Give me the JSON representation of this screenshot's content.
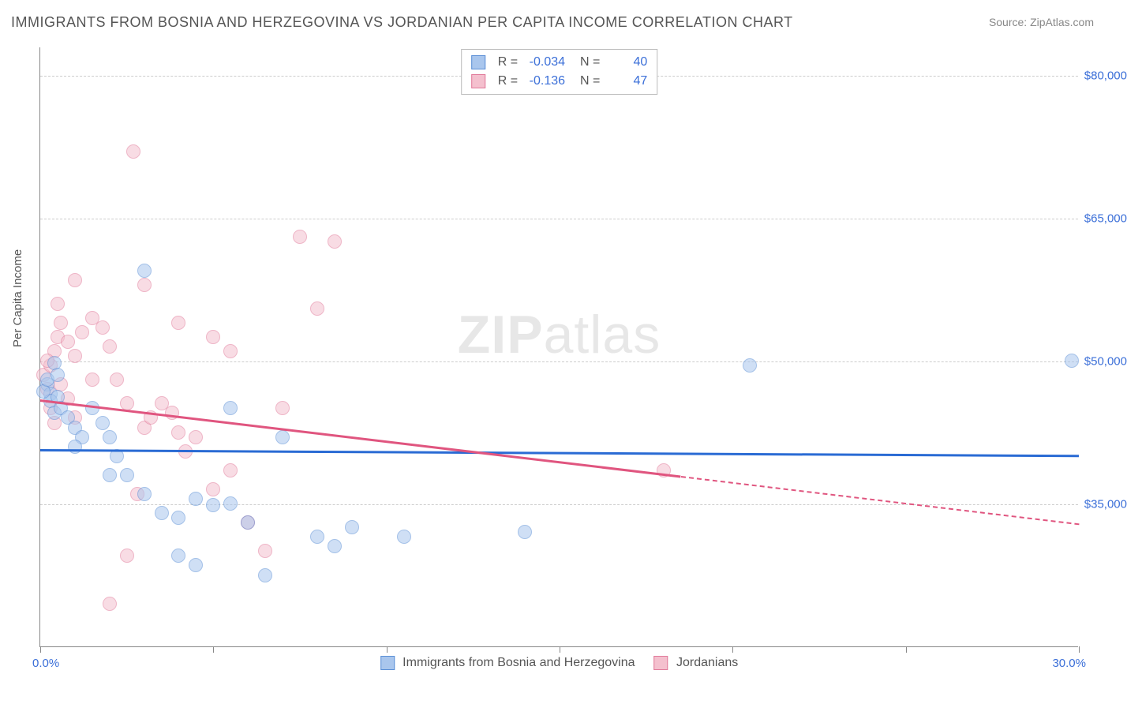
{
  "title": "IMMIGRANTS FROM BOSNIA AND HERZEGOVINA VS JORDANIAN PER CAPITA INCOME CORRELATION CHART",
  "source": "Source: ZipAtlas.com",
  "ylabel": "Per Capita Income",
  "watermark_bold": "ZIP",
  "watermark_light": "atlas",
  "chart": {
    "type": "scatter",
    "background_color": "#ffffff",
    "grid_color": "#cccccc",
    "axis_color": "#888888",
    "xlim": [
      0.0,
      30.0
    ],
    "ylim": [
      20000,
      83000
    ],
    "xlabel_min": "0.0%",
    "xlabel_max": "30.0%",
    "ytick_values": [
      35000,
      50000,
      65000,
      80000
    ],
    "ytick_labels": [
      "$35,000",
      "$50,000",
      "$65,000",
      "$80,000"
    ],
    "xtick_positions": [
      0,
      5,
      10,
      15,
      20,
      25,
      30
    ],
    "point_radius": 9,
    "series": [
      {
        "name": "Immigrants from Bosnia and Herzegovina",
        "fill": "#a9c6ed",
        "stroke": "#5b8fd6",
        "fill_opacity": 0.55,
        "R": "-0.034",
        "N": "40",
        "trend": {
          "x1": 0,
          "y1": 40800,
          "x2": 30,
          "y2": 40200,
          "color": "#2a6bd4",
          "dash_from_x": 30
        },
        "points": [
          [
            0.2,
            47500
          ],
          [
            0.3,
            46500
          ],
          [
            0.3,
            45800
          ],
          [
            0.4,
            44500
          ],
          [
            0.1,
            46800
          ],
          [
            0.5,
            46200
          ],
          [
            0.6,
            45000
          ],
          [
            0.8,
            44000
          ],
          [
            1.0,
            43000
          ],
          [
            1.2,
            42000
          ],
          [
            0.4,
            49800
          ],
          [
            0.2,
            48000
          ],
          [
            1.5,
            45000
          ],
          [
            1.8,
            43500
          ],
          [
            2.0,
            42000
          ],
          [
            2.2,
            40000
          ],
          [
            2.5,
            38000
          ],
          [
            3.0,
            36000
          ],
          [
            3.5,
            34000
          ],
          [
            4.0,
            33500
          ],
          [
            4.5,
            35500
          ],
          [
            5.0,
            34800
          ],
          [
            5.5,
            35000
          ],
          [
            6.0,
            33000
          ],
          [
            6.5,
            27500
          ],
          [
            7.0,
            42000
          ],
          [
            8.0,
            31500
          ],
          [
            8.5,
            30500
          ],
          [
            9.0,
            32500
          ],
          [
            10.5,
            31500
          ],
          [
            3.0,
            59500
          ],
          [
            4.0,
            29500
          ],
          [
            4.5,
            28500
          ],
          [
            5.5,
            45000
          ],
          [
            2.0,
            38000
          ],
          [
            14.0,
            32000
          ],
          [
            20.5,
            49500
          ],
          [
            29.8,
            50000
          ],
          [
            0.5,
            48500
          ],
          [
            1.0,
            41000
          ]
        ]
      },
      {
        "name": "Jordanians",
        "fill": "#f4c0ce",
        "stroke": "#e17a9a",
        "fill_opacity": 0.55,
        "R": "-0.136",
        "N": "47",
        "trend": {
          "x1": 0,
          "y1": 46000,
          "x2": 18.5,
          "y2": 38000,
          "color": "#e0557f",
          "dash_from_x": 18.5,
          "dash_to_x": 30,
          "dash_to_y": 33000
        },
        "points": [
          [
            0.1,
            48500
          ],
          [
            0.2,
            47000
          ],
          [
            0.3,
            49500
          ],
          [
            0.4,
            51000
          ],
          [
            0.5,
            52500
          ],
          [
            0.6,
            54000
          ],
          [
            0.8,
            52000
          ],
          [
            1.0,
            50500
          ],
          [
            1.2,
            53000
          ],
          [
            1.5,
            54500
          ],
          [
            1.8,
            53500
          ],
          [
            2.0,
            51500
          ],
          [
            2.2,
            48000
          ],
          [
            1.0,
            58500
          ],
          [
            0.5,
            56000
          ],
          [
            2.5,
            45500
          ],
          [
            3.0,
            43000
          ],
          [
            3.2,
            44000
          ],
          [
            3.5,
            45500
          ],
          [
            3.8,
            44500
          ],
          [
            4.0,
            42500
          ],
          [
            4.2,
            40500
          ],
          [
            4.5,
            42000
          ],
          [
            5.0,
            36500
          ],
          [
            5.5,
            38500
          ],
          [
            6.0,
            33000
          ],
          [
            2.8,
            36000
          ],
          [
            3.0,
            58000
          ],
          [
            2.0,
            24500
          ],
          [
            2.7,
            72000
          ],
          [
            7.5,
            63000
          ],
          [
            8.5,
            62500
          ],
          [
            7.0,
            45000
          ],
          [
            8.0,
            55500
          ],
          [
            5.0,
            52500
          ],
          [
            5.5,
            51000
          ],
          [
            4.0,
            54000
          ],
          [
            6.5,
            30000
          ],
          [
            1.5,
            48000
          ],
          [
            0.8,
            46000
          ],
          [
            0.3,
            45000
          ],
          [
            0.4,
            43500
          ],
          [
            1.0,
            44000
          ],
          [
            2.5,
            29500
          ],
          [
            18.0,
            38500
          ],
          [
            0.2,
            50000
          ],
          [
            0.6,
            47500
          ]
        ]
      }
    ]
  }
}
